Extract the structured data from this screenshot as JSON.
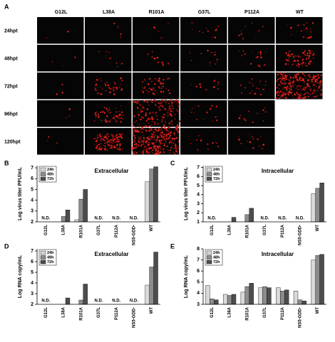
{
  "panel_a": {
    "label": "A",
    "columns": [
      "G12L",
      "L38A",
      "R101A",
      "G37L",
      "P112A",
      "WT"
    ],
    "rows": [
      "24hpt",
      "48hpt",
      "72hpt",
      "96hpt",
      "120hpt"
    ]
  },
  "chart_data": [
    {
      "type": "bar",
      "panel": "B",
      "title": "Extracellular",
      "y_label": "Log virus titer PFU/mL",
      "categories": [
        "G12L",
        "L38A",
        "R101A",
        "G37L",
        "P112A",
        "NS5-GDD-",
        "WT"
      ],
      "series": [
        {
          "name": "24h",
          "color": "#d9d9d9",
          "values": [
            null,
            null,
            2.2,
            null,
            null,
            null,
            5.7
          ]
        },
        {
          "name": "48h",
          "color": "#8c8c8c",
          "values": [
            null,
            2.5,
            4.1,
            null,
            null,
            null,
            6.9
          ]
        },
        {
          "name": "72h",
          "color": "#4d4d4d",
          "values": [
            null,
            3.1,
            5.0,
            null,
            null,
            null,
            7.1
          ]
        }
      ],
      "ylim": [
        2,
        7.2
      ],
      "yticks": [
        2,
        3,
        4,
        5,
        6,
        7
      ],
      "legend": "upper left",
      "annotations": [
        {
          "text": "N.D.",
          "category": "G12L"
        },
        {
          "text": "N.D.",
          "category": "G37L"
        },
        {
          "text": "N.D.",
          "category": "P112A"
        },
        {
          "text": "N.D.",
          "category": "NS5-GDD-"
        }
      ]
    },
    {
      "type": "bar",
      "panel": "C",
      "title": "Intracellular",
      "y_label": "Log virus titer PFU/mL",
      "categories": [
        "G12L",
        "L38A",
        "R101A",
        "G37L",
        "P112A",
        "NS5-GDD-",
        "WT"
      ],
      "series": [
        {
          "name": "24h",
          "color": "#d9d9d9",
          "values": [
            null,
            null,
            null,
            null,
            null,
            null,
            4.1
          ]
        },
        {
          "name": "48h",
          "color": "#8c8c8c",
          "values": [
            null,
            null,
            1.8,
            null,
            null,
            null,
            4.7
          ]
        },
        {
          "name": "72h",
          "color": "#4d4d4d",
          "values": [
            null,
            1.5,
            2.5,
            null,
            null,
            null,
            5.3
          ]
        }
      ],
      "ylim": [
        1,
        7.2
      ],
      "yticks": [
        1,
        2,
        3,
        4,
        5,
        6,
        7
      ],
      "legend": "upper left",
      "annotations": [
        {
          "text": "N.D.",
          "category": "G12L"
        },
        {
          "text": "N.D.",
          "category": "G37L"
        },
        {
          "text": "N.D.",
          "category": "P112A"
        },
        {
          "text": "N.D.",
          "category": "NS5-GDD-"
        }
      ]
    },
    {
      "type": "bar",
      "panel": "D",
      "title": "Extracellular",
      "y_label": "Log RNA copy/mL",
      "categories": [
        "G12L",
        "L38A",
        "R101A",
        "G37L",
        "P112A",
        "NS5-GDD-",
        "WT"
      ],
      "series": [
        {
          "name": "24h",
          "color": "#d9d9d9",
          "values": [
            null,
            null,
            null,
            null,
            null,
            null,
            3.8
          ]
        },
        {
          "name": "48h",
          "color": "#8c8c8c",
          "values": [
            null,
            null,
            2.4,
            null,
            null,
            null,
            5.5
          ]
        },
        {
          "name": "72h",
          "color": "#4d4d4d",
          "values": [
            null,
            2.6,
            3.9,
            null,
            null,
            null,
            6.9
          ]
        }
      ],
      "ylim": [
        2,
        7.2
      ],
      "yticks": [
        2,
        3,
        4,
        5,
        6,
        7
      ],
      "legend": "upper left",
      "annotations": [
        {
          "text": "N.D.",
          "category": "G12L"
        },
        {
          "text": "N.D.",
          "category": "G37L"
        },
        {
          "text": "N.D.",
          "category": "P112A"
        },
        {
          "text": "N.D.",
          "category": "NS5-GDD-"
        }
      ]
    },
    {
      "type": "bar",
      "panel": "E",
      "title": "Intracellular",
      "y_label": "Log RNA copy/mL",
      "categories": [
        "G12L",
        "L38A",
        "R101A",
        "G37L",
        "P112A",
        "NS5-GDD-",
        "WT"
      ],
      "series": [
        {
          "name": "24h",
          "color": "#d9d9d9",
          "values": [
            4.7,
            3.9,
            4.1,
            4.5,
            4.5,
            4.2,
            7.0
          ]
        },
        {
          "name": "48h",
          "color": "#8c8c8c",
          "values": [
            3.5,
            3.8,
            4.6,
            4.6,
            4.2,
            3.4,
            7.4
          ]
        },
        {
          "name": "72h",
          "color": "#4d4d4d",
          "values": [
            3.4,
            3.9,
            4.9,
            4.5,
            4.3,
            3.3,
            7.5
          ]
        }
      ],
      "ylim": [
        3,
        8
      ],
      "yticks": [
        3,
        4,
        5,
        6,
        7,
        8
      ],
      "legend": "upper left",
      "annotations": []
    }
  ]
}
